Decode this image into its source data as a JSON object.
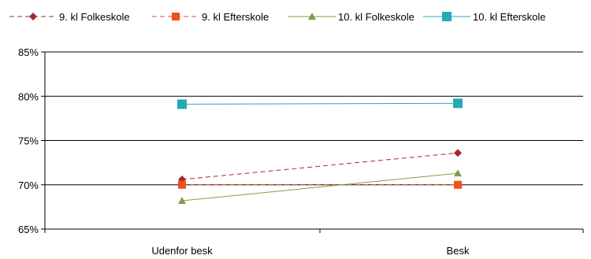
{
  "chart_data": {
    "type": "line",
    "categories": [
      "Udenfor besk",
      "Besk"
    ],
    "ylim": [
      65,
      85
    ],
    "yticks": [
      "85%",
      "80%",
      "75%",
      "70%",
      "65%"
    ],
    "ytick_values": [
      85,
      80,
      75,
      70,
      65
    ],
    "grid": true,
    "legend_position": "top",
    "series": [
      {
        "name": "9. kl Folkeskole",
        "values": [
          70.6,
          73.6
        ],
        "color": "#a52a2a",
        "marker": "diamond",
        "dash": true
      },
      {
        "name": "9. kl Efterskole",
        "values": [
          70.0,
          70.0
        ],
        "color": "#f04e1c",
        "marker": "square",
        "dash": true
      },
      {
        "name": "10. kl Folkeskole",
        "values": [
          68.2,
          71.3
        ],
        "color": "#7f9f45",
        "marker": "triangle",
        "dash": false
      },
      {
        "name": "10. kl Efterskole",
        "values": [
          79.1,
          79.2
        ],
        "color": "#22aab8",
        "marker": "square",
        "dash": false
      }
    ]
  }
}
